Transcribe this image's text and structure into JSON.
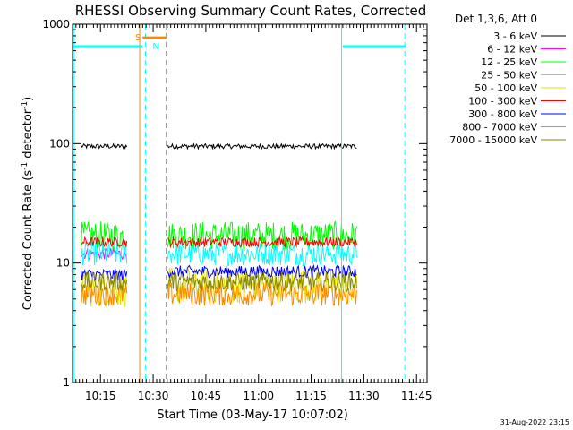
{
  "chart_data": {
    "type": "line",
    "title": "RHESSI Observing Summary Count Rates, Corrected",
    "xlabel": "Start Time (03-May-17 10:07:02)",
    "ylabel_main": "Corrected Count Rate (s",
    "ylabel_sup1": "-1",
    "ylabel_mid": " detector",
    "ylabel_sup2": "-1",
    "ylabel_end": ")",
    "y_scale": "log",
    "ylim": [
      1,
      1000
    ],
    "xlim": [
      "10:07:02",
      "11:48:00"
    ],
    "x_ticks": [
      "10:15",
      "10:30",
      "10:45",
      "11:00",
      "11:15",
      "11:30",
      "11:45"
    ],
    "y_ticks": [
      "1",
      "10",
      "100",
      "1000"
    ],
    "legend_title": "Det 1,3,6, Att 0",
    "legend_placement": "right",
    "series": [
      {
        "name": "3 - 6 keV",
        "color": "#000000",
        "segments": [
          {
            "start": "10:09:30",
            "end": "10:22:40",
            "level": 95,
            "noise": 0.02
          },
          {
            "start": "10:34:10",
            "end": "11:28:00",
            "level": 95,
            "noise": 0.02
          }
        ]
      },
      {
        "name": "6 - 12 keV",
        "color": "#ff00ff",
        "segments": [
          {
            "start": "10:09:30",
            "end": "10:22:40",
            "level": 12,
            "noise": 0.05
          }
        ]
      },
      {
        "name": "12 - 25 keV",
        "color": "#00ff00",
        "segments": [
          {
            "start": "10:09:30",
            "end": "10:22:40",
            "level": 17,
            "noise": 0.12
          },
          {
            "start": "10:34:10",
            "end": "11:28:00",
            "level": 17,
            "noise": 0.12
          }
        ]
      },
      {
        "name": "25 - 50 keV",
        "color": "#00ffff",
        "segments": [
          {
            "start": "10:09:30",
            "end": "10:22:40",
            "level": 12,
            "noise": 0.1
          },
          {
            "start": "10:34:10",
            "end": "11:28:00",
            "level": 12,
            "noise": 0.1
          }
        ]
      },
      {
        "name": "50 - 100 keV",
        "color": "#e0e000",
        "segments": [
          {
            "start": "10:09:30",
            "end": "10:22:40",
            "level": 6,
            "noise": 0.15
          },
          {
            "start": "10:34:10",
            "end": "11:28:00",
            "level": 6.5,
            "noise": 0.15
          }
        ]
      },
      {
        "name": "100 - 300 keV",
        "color": "#ff0000",
        "segments": [
          {
            "start": "10:09:30",
            "end": "10:22:40",
            "level": 15,
            "noise": 0.04
          },
          {
            "start": "10:34:10",
            "end": "11:28:00",
            "level": 15,
            "noise": 0.04
          }
        ]
      },
      {
        "name": "300 - 800 keV",
        "color": "#0000ff",
        "segments": [
          {
            "start": "10:09:30",
            "end": "10:22:40",
            "level": 8,
            "noise": 0.05
          },
          {
            "start": "10:34:10",
            "end": "11:28:00",
            "level": 8.5,
            "noise": 0.05
          }
        ]
      },
      {
        "name": "800 - 7000 keV",
        "color": "#ff8800",
        "segments": [
          {
            "start": "10:09:30",
            "end": "10:22:40",
            "level": 5.5,
            "noise": 0.1
          },
          {
            "start": "10:34:10",
            "end": "11:28:00",
            "level": 5.5,
            "noise": 0.1
          }
        ]
      },
      {
        "name": "7000 - 15000 keV",
        "color": "#888800",
        "segments": [
          {
            "start": "10:09:30",
            "end": "10:22:40",
            "level": 7,
            "noise": 0.08
          },
          {
            "start": "10:34:10",
            "end": "11:28:00",
            "level": 7,
            "noise": 0.08
          }
        ]
      }
    ],
    "bars": [
      {
        "color": "#00ffff",
        "level": 650,
        "start": "10:07:02",
        "end": "10:27:00"
      },
      {
        "color": "#00ffff",
        "level": 650,
        "start": "11:24:00",
        "end": "11:42:00"
      }
    ],
    "saa_bar": {
      "color": "#ff8800",
      "level": 770,
      "start": "10:27:00",
      "end": "10:33:40",
      "label": "S"
    },
    "night_label": {
      "text": "N",
      "color": "#00ffff",
      "time": "10:29:50"
    },
    "vlines": [
      {
        "time": "10:07:30",
        "color": "#00ffff",
        "style": "solid"
      },
      {
        "time": "10:26:10",
        "color": "#ff8800",
        "style": "solid"
      },
      {
        "time": "10:27:50",
        "color": "#00ffff",
        "style": "dashed"
      },
      {
        "time": "10:33:40",
        "color": "#ff8800",
        "style": "dashed"
      },
      {
        "time": "11:23:40",
        "color": "#00ffff",
        "style": "solid"
      },
      {
        "time": "11:41:40",
        "color": "#00ffff",
        "style": "dashed"
      }
    ],
    "timestamp": "31-Aug-2022 23:15"
  }
}
